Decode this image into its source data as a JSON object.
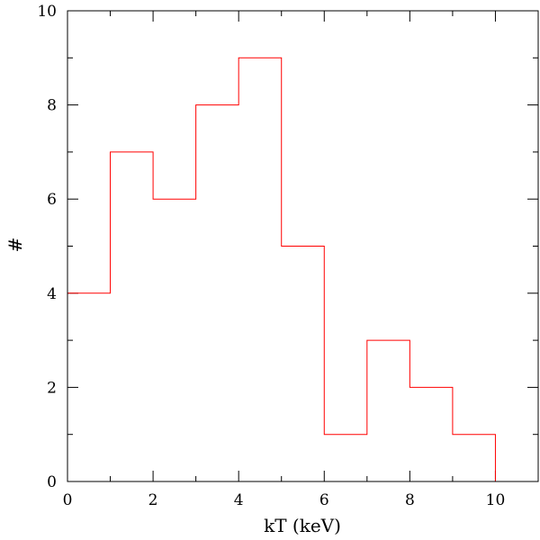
{
  "chart_data": {
    "type": "histogram",
    "title": "",
    "xlabel": "kT (keV)",
    "ylabel": "#",
    "xlim": [
      0,
      11
    ],
    "ylim": [
      0,
      10
    ],
    "x_major_ticks": [
      0,
      2,
      4,
      6,
      8,
      10
    ],
    "y_major_ticks": [
      0,
      2,
      4,
      6,
      8,
      10
    ],
    "x_minor_tick_step": 1,
    "y_minor_tick_step": 1,
    "grid": false,
    "legend": "none",
    "line_color": "#ff0000",
    "bins": [
      {
        "x0": 0,
        "x1": 1,
        "value": 4
      },
      {
        "x0": 1,
        "x1": 2,
        "value": 7
      },
      {
        "x0": 2,
        "x1": 3,
        "value": 6
      },
      {
        "x0": 3,
        "x1": 4,
        "value": 8
      },
      {
        "x0": 4,
        "x1": 5,
        "value": 9
      },
      {
        "x0": 5,
        "x1": 6,
        "value": 5
      },
      {
        "x0": 6,
        "x1": 7,
        "value": 1
      },
      {
        "x0": 7,
        "x1": 8,
        "value": 3
      },
      {
        "x0": 8,
        "x1": 9,
        "value": 2
      },
      {
        "x0": 9,
        "x1": 10,
        "value": 1
      },
      {
        "x0": 10,
        "x1": 11,
        "value": 0
      }
    ]
  }
}
